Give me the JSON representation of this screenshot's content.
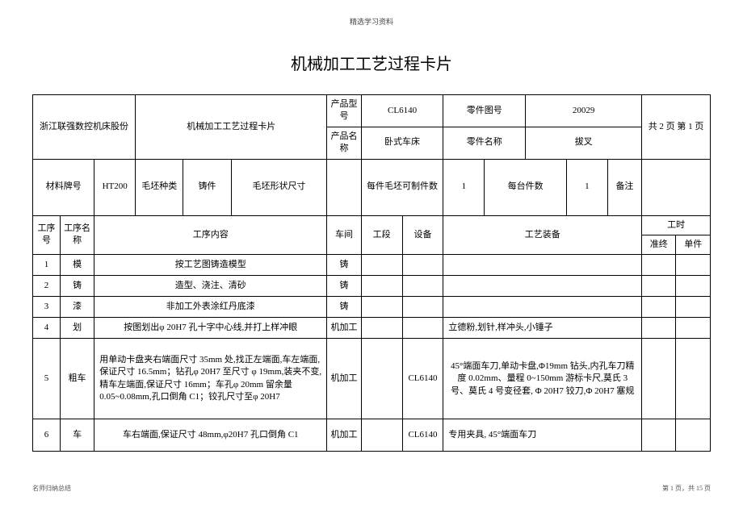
{
  "header_tiny": "精选学习资料",
  "title": "机械加工工艺过程卡片",
  "meta": {
    "company": "浙江联强数控机床股份",
    "card_name": "机械加工工艺过程卡片",
    "product_model_label": "产品型号",
    "product_model": "CL6140",
    "part_drawing_label": "零件图号",
    "part_drawing": "20029",
    "product_name_label": "产品名称",
    "product_name": "卧式车床",
    "part_name_label": "零件名称",
    "part_name": "拔叉",
    "page_info": "共 2 页 第 1 页"
  },
  "material": {
    "label": "材料牌号",
    "value": "HT200",
    "blank_type_label": "毛坯种类",
    "blank_type": "铸件",
    "blank_dim_label": "毛坯形状尺寸",
    "blank_dim": "",
    "per_blank_label": "每件毛坯可制件数",
    "per_blank": "1",
    "per_unit_label": "每台件数",
    "per_unit": "1",
    "remark_label": "备注",
    "remark": ""
  },
  "cols": {
    "seq_no": "工序号",
    "seq_name": "工序名称",
    "content": "工序内容",
    "workshop": "车间",
    "section": "工段",
    "equipment": "设备",
    "tooling": "工艺装备",
    "time": "工时",
    "time_prep": "准终",
    "time_unit": "单件"
  },
  "rows": [
    {
      "no": "1",
      "name": "模",
      "content": "按工艺图铸造模型",
      "workshop": "铸",
      "section": "",
      "equipment": "",
      "tooling": "",
      "prep": "",
      "unit": ""
    },
    {
      "no": "2",
      "name": "铸",
      "content": "造型、浇注、清砂",
      "workshop": "铸",
      "section": "",
      "equipment": "",
      "tooling": "",
      "prep": "",
      "unit": ""
    },
    {
      "no": "3",
      "name": "漆",
      "content": "非加工外表涂红丹底漆",
      "workshop": "铸",
      "section": "",
      "equipment": "",
      "tooling": "",
      "prep": "",
      "unit": ""
    },
    {
      "no": "4",
      "name": "划",
      "content": "按图划出φ 20H7 孔十字中心线,并打上样冲眼",
      "workshop": "机加工",
      "section": "",
      "equipment": "",
      "tooling": "立德粉,划针,样冲头,小锤子",
      "prep": "",
      "unit": ""
    },
    {
      "no": "5",
      "name": "粗车",
      "content": "用单动卡盘夹右端面尺寸 35mm 处,找正左端面,车左端面,保证尺寸 16.5mm；钻孔φ 20H7 至尺寸 φ 19mm,装夹不变,精车左端面,保证尺寸 16mm；车孔φ 20mm 留余量 0.05~0.08mm,孔口倒角 C1；铰孔尺寸至φ 20H7",
      "workshop": "机加工",
      "section": "",
      "equipment": "CL6140",
      "tooling": "45°端面车刀,单动卡盘,Φ19mm 钻头,内孔车刀精度 0.02mm、量程 0~150mm 游标卡尺,莫氏 3 号、莫氏 4 号变径套, Φ 20H7 铰刀,Φ 20H7 塞规",
      "prep": "",
      "unit": ""
    },
    {
      "no": "6",
      "name": "车",
      "content": "车右端面,保证尺寸 48mm,φ20H7 孔口倒角 C1",
      "workshop": "机加工",
      "section": "",
      "equipment": "CL6140",
      "tooling": "专用夹具, 45°端面车刀",
      "prep": "",
      "unit": ""
    }
  ],
  "footer_left": "名师归纳总结",
  "footer_right": "第 1 页，共 15 页"
}
